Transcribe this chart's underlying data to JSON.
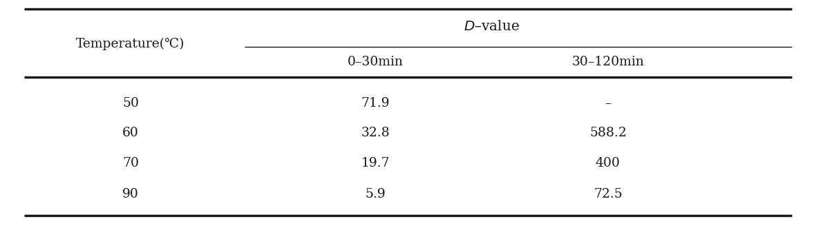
{
  "col_header_main": "$D$–value",
  "col_header_sub": [
    "0–30min",
    "30–120min"
  ],
  "row_header_label": "Temperature(℃)",
  "rows": [
    {
      "temp": "50",
      "val1": "71.9",
      "val2": "–"
    },
    {
      "temp": "60",
      "val1": "32.8",
      "val2": "588.2"
    },
    {
      "temp": "70",
      "val1": "19.7",
      "val2": "400"
    },
    {
      "temp": "90",
      "val1": "5.9",
      "val2": "72.5"
    }
  ],
  "bg_color": "#ffffff",
  "text_color": "#1a1a1a",
  "fs": 13.5
}
